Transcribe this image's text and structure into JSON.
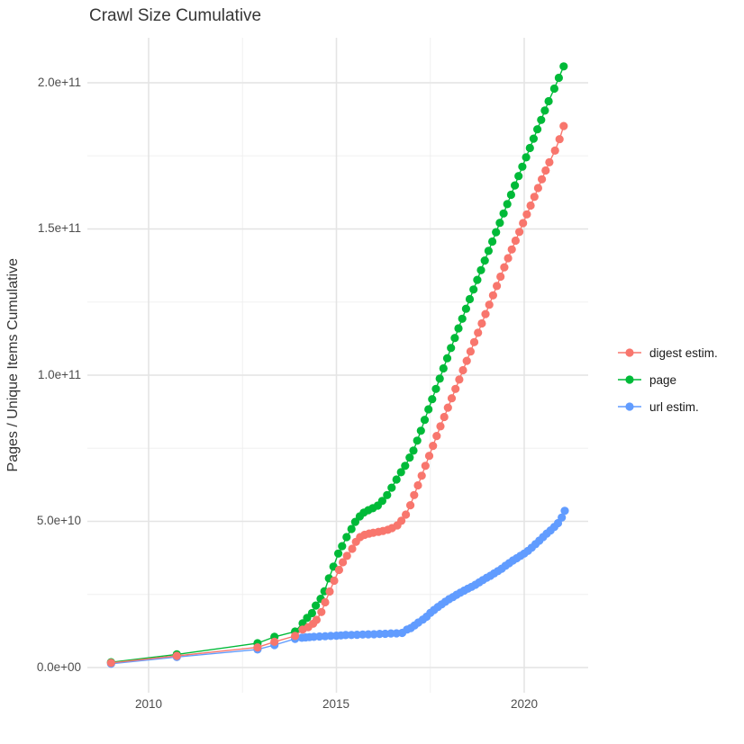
{
  "title": "Crawl Size Cumulative",
  "colors": {
    "digest": "#F8766D",
    "page": "#00BA38",
    "url": "#619CFF",
    "grid_major": "#e4e4e4",
    "grid_minor": "#f0f0f0",
    "tick_text": "#4d4d4d",
    "title_text": "#363636"
  },
  "chart_data": {
    "type": "line",
    "title": "Crawl Size Cumulative",
    "xlabel": "",
    "ylabel": "Pages / Unique Items Cumulative",
    "legend_position": "right",
    "grid": "on",
    "marker": "point",
    "y_value_unit": 1000000000.0,
    "xlim": [
      2008.4,
      2021.7
    ],
    "ylim_e9": [
      -10,
      215
    ],
    "x_ticks": [
      {
        "label": "2010",
        "year": 2010
      },
      {
        "label": "2015",
        "year": 2015
      },
      {
        "label": "2020",
        "year": 2020
      }
    ],
    "x_minor_years": [
      2012.5,
      2017.5
    ],
    "y_ticks": [
      {
        "label": "2.0e+11",
        "value_e9": 200
      },
      {
        "label": "1.5e+11",
        "value_e9": 150
      },
      {
        "label": "1.0e+11",
        "value_e9": 100
      },
      {
        "label": "5.0e+10",
        "value_e9": 50
      },
      {
        "label": "0.0e+00",
        "value_e9": 0
      }
    ],
    "y_minor_e9": [
      25,
      75,
      125,
      175
    ],
    "legend": [
      {
        "name": "digest estim.",
        "color": "#F8766D"
      },
      {
        "name": "page",
        "color": "#00BA38"
      },
      {
        "name": "url estim.",
        "color": "#619CFF"
      }
    ],
    "series": [
      {
        "name": "digest estim.",
        "color": "#F8766D",
        "points": [
          [
            2009.0,
            1.6
          ],
          [
            2010.75,
            4.0
          ],
          [
            2012.9,
            6.9
          ],
          [
            2013.35,
            8.8
          ],
          [
            2013.9,
            10.8
          ],
          [
            2014.1,
            13
          ],
          [
            2014.25,
            13.8
          ],
          [
            2014.38,
            15
          ],
          [
            2014.47,
            16.3
          ],
          [
            2014.6,
            19
          ],
          [
            2014.7,
            22.3
          ],
          [
            2014.82,
            26
          ],
          [
            2014.94,
            29.7
          ],
          [
            2015.07,
            33.4
          ],
          [
            2015.17,
            36
          ],
          [
            2015.28,
            38.2
          ],
          [
            2015.42,
            40.6
          ],
          [
            2015.52,
            43
          ],
          [
            2015.63,
            44.6
          ],
          [
            2015.75,
            45.4
          ],
          [
            2015.87,
            45.8
          ],
          [
            2015.98,
            46.1
          ],
          [
            2016.12,
            46.4
          ],
          [
            2016.24,
            46.7
          ],
          [
            2016.37,
            47.1
          ],
          [
            2016.48,
            47.7
          ],
          [
            2016.62,
            48.6
          ],
          [
            2016.73,
            50.2
          ],
          [
            2016.85,
            52.3
          ],
          [
            2016.97,
            55.5
          ],
          [
            2017.07,
            59
          ],
          [
            2017.17,
            62.3
          ],
          [
            2017.27,
            65.6
          ],
          [
            2017.37,
            69
          ],
          [
            2017.47,
            72.4
          ],
          [
            2017.57,
            75.8
          ],
          [
            2017.67,
            79.2
          ],
          [
            2017.77,
            82.5
          ],
          [
            2017.87,
            85.7
          ],
          [
            2017.97,
            88.9
          ],
          [
            2018.07,
            92.1
          ],
          [
            2018.17,
            95.3
          ],
          [
            2018.27,
            98.5
          ],
          [
            2018.37,
            101.7
          ],
          [
            2018.47,
            104.9
          ],
          [
            2018.57,
            108.1
          ],
          [
            2018.67,
            111.3
          ],
          [
            2018.77,
            114.5
          ],
          [
            2018.87,
            117.7
          ],
          [
            2018.97,
            120.9
          ],
          [
            2019.07,
            124.1
          ],
          [
            2019.17,
            127.3
          ],
          [
            2019.27,
            130.5
          ],
          [
            2019.37,
            133.7
          ],
          [
            2019.47,
            136.9
          ],
          [
            2019.57,
            140
          ],
          [
            2019.67,
            143
          ],
          [
            2019.77,
            146
          ],
          [
            2019.87,
            149
          ],
          [
            2019.97,
            152
          ],
          [
            2020.07,
            155
          ],
          [
            2020.17,
            158
          ],
          [
            2020.27,
            161
          ],
          [
            2020.37,
            164
          ],
          [
            2020.47,
            167
          ],
          [
            2020.57,
            170
          ],
          [
            2020.67,
            172.8
          ],
          [
            2020.82,
            176.8
          ],
          [
            2020.94,
            180.7
          ],
          [
            2021.05,
            185.2
          ]
        ]
      },
      {
        "name": "page",
        "color": "#00BA38",
        "points": [
          [
            2009.0,
            1.8
          ],
          [
            2010.75,
            4.5
          ],
          [
            2012.9,
            8.3
          ],
          [
            2013.35,
            10.5
          ],
          [
            2013.9,
            12.3
          ],
          [
            2014.1,
            15.1
          ],
          [
            2014.22,
            17
          ],
          [
            2014.35,
            18.6
          ],
          [
            2014.45,
            21.2
          ],
          [
            2014.58,
            23.5
          ],
          [
            2014.68,
            26.1
          ],
          [
            2014.8,
            30.5
          ],
          [
            2014.92,
            34.5
          ],
          [
            2015.05,
            39
          ],
          [
            2015.15,
            41.5
          ],
          [
            2015.27,
            44.6
          ],
          [
            2015.4,
            47.4
          ],
          [
            2015.5,
            49.8
          ],
          [
            2015.62,
            51.7
          ],
          [
            2015.73,
            53
          ],
          [
            2015.85,
            53.8
          ],
          [
            2015.97,
            54.5
          ],
          [
            2016.1,
            55.4
          ],
          [
            2016.22,
            57
          ],
          [
            2016.35,
            59
          ],
          [
            2016.47,
            61.5
          ],
          [
            2016.6,
            64.3
          ],
          [
            2016.72,
            66.8
          ],
          [
            2016.83,
            69
          ],
          [
            2016.95,
            71.8
          ],
          [
            2017.05,
            74.2
          ],
          [
            2017.15,
            77.6
          ],
          [
            2017.25,
            81
          ],
          [
            2017.35,
            84.7
          ],
          [
            2017.45,
            88.3
          ],
          [
            2017.55,
            91.8
          ],
          [
            2017.65,
            95.3
          ],
          [
            2017.75,
            98.8
          ],
          [
            2017.85,
            102.3
          ],
          [
            2017.95,
            105.8
          ],
          [
            2018.05,
            109.3
          ],
          [
            2018.15,
            112.7
          ],
          [
            2018.25,
            116
          ],
          [
            2018.35,
            119.3
          ],
          [
            2018.45,
            122.7
          ],
          [
            2018.55,
            126
          ],
          [
            2018.65,
            129.3
          ],
          [
            2018.75,
            132.6
          ],
          [
            2018.85,
            135.9
          ],
          [
            2018.95,
            139.2
          ],
          [
            2019.05,
            142.5
          ],
          [
            2019.15,
            145.7
          ],
          [
            2019.25,
            148.9
          ],
          [
            2019.35,
            152.1
          ],
          [
            2019.45,
            155.3
          ],
          [
            2019.55,
            158.5
          ],
          [
            2019.65,
            161.7
          ],
          [
            2019.75,
            164.9
          ],
          [
            2019.85,
            168.1
          ],
          [
            2019.95,
            171.3
          ],
          [
            2020.05,
            174.5
          ],
          [
            2020.15,
            177.7
          ],
          [
            2020.25,
            180.9
          ],
          [
            2020.35,
            184.1
          ],
          [
            2020.45,
            187.3
          ],
          [
            2020.55,
            190.5
          ],
          [
            2020.65,
            193.7
          ],
          [
            2020.8,
            198
          ],
          [
            2020.92,
            201.7
          ],
          [
            2021.05,
            205.6
          ]
        ]
      },
      {
        "name": "url estim.",
        "color": "#619CFF",
        "points": [
          [
            2009.0,
            1.3
          ],
          [
            2010.75,
            3.6
          ],
          [
            2012.9,
            6.2
          ],
          [
            2013.35,
            7.7
          ],
          [
            2013.9,
            9.8
          ],
          [
            2014.08,
            10.2
          ],
          [
            2014.18,
            10.3
          ],
          [
            2014.28,
            10.4
          ],
          [
            2014.4,
            10.5
          ],
          [
            2014.55,
            10.6
          ],
          [
            2014.7,
            10.7
          ],
          [
            2014.85,
            10.8
          ],
          [
            2015.0,
            10.9
          ],
          [
            2015.12,
            11
          ],
          [
            2015.25,
            11.1
          ],
          [
            2015.4,
            11.15
          ],
          [
            2015.55,
            11.2
          ],
          [
            2015.7,
            11.3
          ],
          [
            2015.85,
            11.35
          ],
          [
            2016.0,
            11.4
          ],
          [
            2016.15,
            11.5
          ],
          [
            2016.3,
            11.55
          ],
          [
            2016.45,
            11.65
          ],
          [
            2016.6,
            11.7
          ],
          [
            2016.75,
            11.85
          ],
          [
            2016.88,
            13
          ],
          [
            2016.98,
            13.5
          ],
          [
            2017.08,
            14.4
          ],
          [
            2017.18,
            15.4
          ],
          [
            2017.3,
            16.4
          ],
          [
            2017.4,
            17.4
          ],
          [
            2017.5,
            18.7
          ],
          [
            2017.6,
            19.7
          ],
          [
            2017.7,
            20.7
          ],
          [
            2017.8,
            21.6
          ],
          [
            2017.9,
            22.5
          ],
          [
            2018.0,
            23.4
          ],
          [
            2018.1,
            24.1
          ],
          [
            2018.2,
            24.9
          ],
          [
            2018.3,
            25.6
          ],
          [
            2018.4,
            26.3
          ],
          [
            2018.5,
            27
          ],
          [
            2018.6,
            27.6
          ],
          [
            2018.7,
            28.3
          ],
          [
            2018.8,
            29.1
          ],
          [
            2018.9,
            29.9
          ],
          [
            2019.0,
            30.7
          ],
          [
            2019.1,
            31.4
          ],
          [
            2019.2,
            32.2
          ],
          [
            2019.3,
            33
          ],
          [
            2019.4,
            33.8
          ],
          [
            2019.5,
            34.8
          ],
          [
            2019.6,
            35.7
          ],
          [
            2019.7,
            36.6
          ],
          [
            2019.8,
            37.4
          ],
          [
            2019.9,
            38.2
          ],
          [
            2020.0,
            39
          ],
          [
            2020.1,
            39.9
          ],
          [
            2020.2,
            41
          ],
          [
            2020.3,
            42.2
          ],
          [
            2020.4,
            43.4
          ],
          [
            2020.5,
            44.6
          ],
          [
            2020.6,
            45.8
          ],
          [
            2020.7,
            46.9
          ],
          [
            2020.8,
            48.1
          ],
          [
            2020.9,
            49.4
          ],
          [
            2021.0,
            51.3
          ],
          [
            2021.08,
            53.6
          ]
        ]
      }
    ]
  }
}
